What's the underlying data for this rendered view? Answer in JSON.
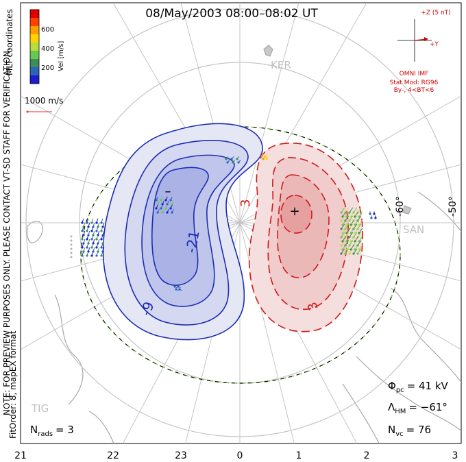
{
  "title": "08/May/2003 08:00–08:02 UT",
  "coordinates_label": "MLT coordinates",
  "velocity_scale": {
    "label": "Vel [m/s]",
    "ticks": [
      "600",
      "400",
      "200"
    ],
    "colors": [
      "#e00000",
      "#ff4000",
      "#ff9c00",
      "#ffd200",
      "#b8dc3c",
      "#68c850",
      "#3c8c5c",
      "#2c64b8",
      "#1c1cd0"
    ],
    "reference": "1000 m/s"
  },
  "imf": {
    "scale": "+Z (5 nT)",
    "y_axis": "+Y",
    "source": "OMNI IMF",
    "model": "Stat Mod: RG96",
    "condition": "By-, 4<BT<6"
  },
  "latitude_labels": [
    "-60°",
    "-50°"
  ],
  "site_labels": [
    "KER",
    "SAN",
    "TIG"
  ],
  "contour_labels": [
    "-21",
    "-9",
    "3",
    "3"
  ],
  "convection_cells": {
    "negative_center": "–",
    "positive_center": "+",
    "negative_color": "#1c2cb4",
    "positive_color": "#d01818"
  },
  "stats": {
    "phi_symbol": "Φ",
    "phi_sub": "pc",
    "phi_value": "=  41  kV",
    "lambda_symbol": "Λ",
    "lambda_sub": "HM",
    "lambda_value": "=  −61°",
    "nvc_symbol": "N",
    "nvc_sub": "vc",
    "nvc_value": "=  76",
    "nrads_symbol": "N",
    "nrads_sub": "rads",
    "nrads_value": "=  3"
  },
  "side_notes": {
    "preview_note": "NOTE: FOR PREVIEW PURPOSES ONLY. PLEASE CONTACT VT-SD STAFF FOR VERIFICATION.",
    "fit_info": "FitOrder: 8, mapEX format"
  },
  "mlt_axis_labels": [
    "21",
    "22",
    "23",
    "0",
    "1",
    "2",
    "3"
  ]
}
